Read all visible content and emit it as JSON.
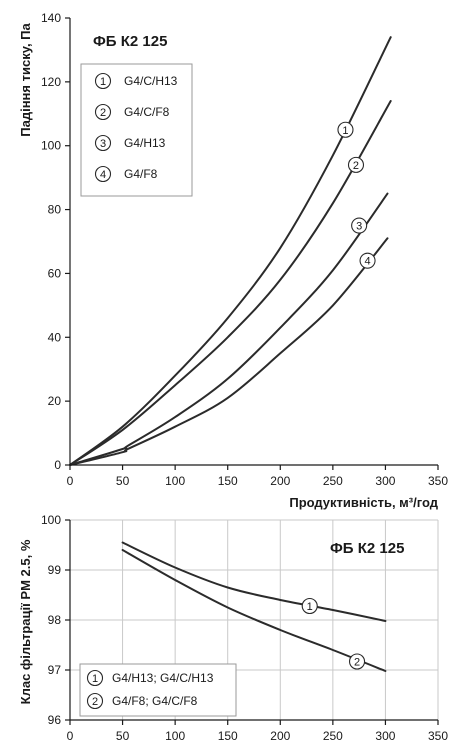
{
  "chart_data": [
    {
      "type": "line",
      "title": "ФБ К2 125",
      "xlabel": "Продуктивність, м³/год",
      "ylabel": "Падіння тиску, Па",
      "xlim": [
        0,
        350
      ],
      "ylim": [
        0,
        140
      ],
      "xticks": [
        0,
        50,
        100,
        150,
        200,
        250,
        300,
        350
      ],
      "yticks": [
        0,
        20,
        40,
        60,
        80,
        100,
        120,
        140
      ],
      "grid": false,
      "legend_position": "top-left",
      "series": [
        {
          "marker": "1",
          "name": "G4/C/H13",
          "x": [
            0,
            50,
            100,
            150,
            200,
            250,
            305
          ],
          "y": [
            0,
            12,
            28,
            46,
            68,
            97,
            134
          ],
          "label_at": [
            262,
            105
          ]
        },
        {
          "marker": "2",
          "name": "G4/C/F8",
          "x": [
            0,
            50,
            100,
            150,
            200,
            250,
            305
          ],
          "y": [
            0,
            11,
            25,
            40,
            58,
            82,
            114
          ],
          "label_at": [
            272,
            94
          ]
        },
        {
          "marker": "3",
          "name": "G4/H13",
          "x": [
            0,
            50,
            55,
            100,
            150,
            200,
            250,
            302
          ],
          "y": [
            0,
            5,
            6,
            15,
            27,
            43,
            61,
            85
          ],
          "label_at": [
            275,
            75
          ]
        },
        {
          "marker": "4",
          "name": "G4/F8",
          "x": [
            0,
            50,
            55,
            100,
            150,
            200,
            250,
            302
          ],
          "y": [
            0,
            4,
            5,
            12,
            21,
            35,
            50,
            71
          ],
          "label_at": [
            283,
            64
          ]
        }
      ]
    },
    {
      "type": "line",
      "title": "ФБ К2 125",
      "xlabel": "",
      "ylabel": "Клас фільтрації PM 2.5, %",
      "xlim": [
        0,
        350
      ],
      "ylim": [
        96,
        100
      ],
      "xticks": [
        0,
        50,
        100,
        150,
        200,
        250,
        300,
        350
      ],
      "yticks": [
        96,
        97,
        98,
        99,
        100
      ],
      "grid": true,
      "legend_position": "bottom-left",
      "series": [
        {
          "marker": "1",
          "name": "G4/H13; G4/C/H13",
          "x": [
            50,
            100,
            150,
            200,
            250,
            300
          ],
          "y": [
            99.55,
            99.05,
            98.65,
            98.4,
            98.2,
            97.98
          ],
          "label_at": [
            228,
            98.28
          ]
        },
        {
          "marker": "2",
          "name": "G4/F8; G4/C/F8",
          "x": [
            50,
            100,
            150,
            200,
            250,
            300
          ],
          "y": [
            99.4,
            98.8,
            98.25,
            97.8,
            97.4,
            96.98
          ],
          "label_at": [
            273,
            97.17
          ]
        }
      ]
    }
  ]
}
